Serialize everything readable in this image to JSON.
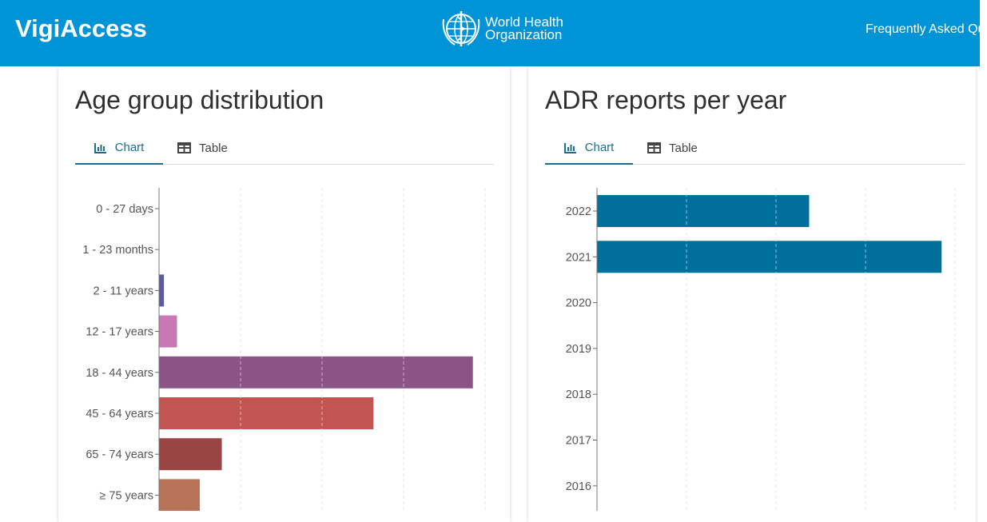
{
  "header": {
    "brand": "VigiAccess",
    "org_line1": "World Health",
    "org_line2": "Organization",
    "faq_link": "Frequently Asked Questions",
    "bg_color": "#0093d5"
  },
  "age_card": {
    "title": "Age group distribution",
    "tabs": [
      {
        "label": "Chart",
        "icon": "bar-chart-icon",
        "active": true
      },
      {
        "label": "Table",
        "icon": "table-icon",
        "active": false
      }
    ]
  },
  "adr_card": {
    "title": "ADR reports per year",
    "tabs": [
      {
        "label": "Chart",
        "icon": "bar-chart-icon",
        "active": true
      },
      {
        "label": "Table",
        "icon": "table-icon",
        "active": false
      }
    ]
  },
  "chart_data": [
    {
      "type": "bar",
      "orientation": "horizontal",
      "title": "Age group distribution",
      "categories": [
        "0 - 27 days",
        "1 - 23 months",
        "2 - 11 years",
        "12 - 17 years",
        "18 - 44 years",
        "45 - 64 years",
        "65 - 74 years",
        "≥ 75 years"
      ],
      "values": [
        0,
        0,
        6,
        22,
        385,
        263,
        77,
        50
      ],
      "colors": [
        "#5b5b9e",
        "#5b5b9e",
        "#5b5b9e",
        "#c978b6",
        "#8b5386",
        "#c25452",
        "#9a4443",
        "#b87257"
      ],
      "xlim": [
        0,
        400
      ],
      "grid": true
    },
    {
      "type": "bar",
      "orientation": "horizontal",
      "title": "ADR reports per year",
      "categories": [
        "2022",
        "2021",
        "2020",
        "2019",
        "2018",
        "2017",
        "2016"
      ],
      "values": [
        237,
        385,
        0,
        0,
        0,
        0,
        0
      ],
      "colors": [
        "#006f9b"
      ],
      "xlim": [
        0,
        400
      ],
      "grid": true
    }
  ]
}
